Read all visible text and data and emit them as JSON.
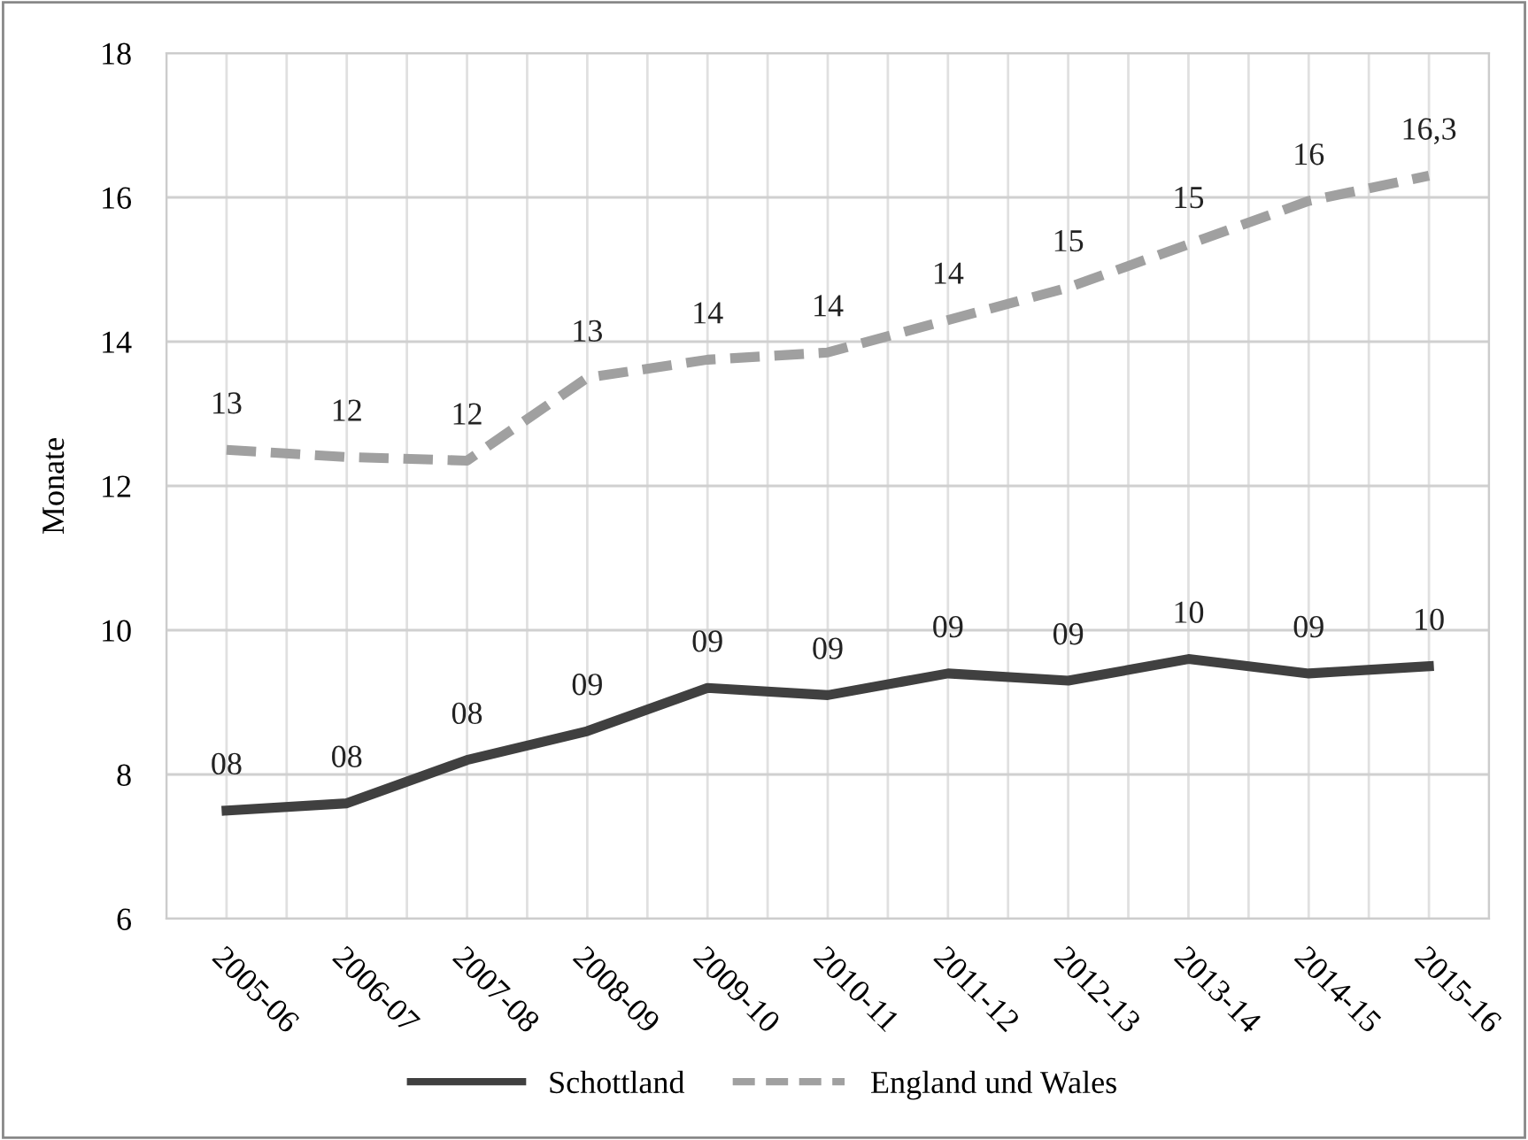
{
  "chart_data": {
    "type": "line",
    "ylabel": "Monate",
    "categories": [
      "2005-06",
      "2006-07",
      "2007-08",
      "2008-09",
      "2009-10",
      "2010-11",
      "2011-12",
      "2012-13",
      "2013-14",
      "2014-15",
      "2015-16"
    ],
    "series": [
      {
        "name": "Schottland",
        "color": "#404040",
        "line_style": "solid",
        "values": [
          7.5,
          7.6,
          8.2,
          8.6,
          9.2,
          9.1,
          9.4,
          9.3,
          9.6,
          9.4,
          9.5
        ],
        "value_labels": [
          "08",
          "08",
          "08",
          "09",
          "09",
          "09",
          "09",
          "09",
          "10",
          "09",
          "10"
        ]
      },
      {
        "name": "England und Wales",
        "color": "#a0a0a0",
        "line_style": "dashed",
        "values": [
          12.5,
          12.4,
          12.35,
          13.5,
          13.75,
          13.85,
          14.3,
          14.75,
          15.35,
          15.95,
          16.3
        ],
        "value_labels": [
          "13",
          "12",
          "12",
          "13",
          "14",
          "14",
          "14",
          "15",
          "15",
          "16",
          "16,3"
        ]
      }
    ],
    "ylim": [
      6,
      18
    ],
    "yticks": [
      6,
      8,
      10,
      12,
      14,
      16,
      18
    ],
    "grid": true,
    "legend": "bottom",
    "marker": "none"
  }
}
